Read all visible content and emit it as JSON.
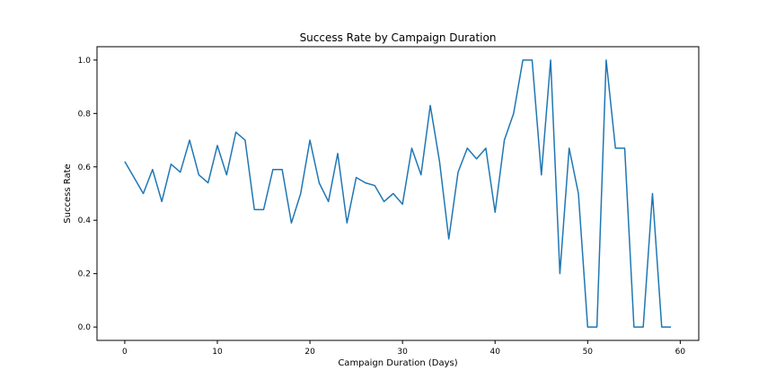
{
  "chart_data": {
    "type": "line",
    "title": "Success Rate by Campaign Duration",
    "xlabel": "Campaign Duration (Days)",
    "ylabel": "Success Rate",
    "xlim": [
      -3,
      62
    ],
    "ylim": [
      -0.05,
      1.05
    ],
    "xticks": [
      0,
      10,
      20,
      30,
      40,
      50,
      60
    ],
    "yticks": [
      0.0,
      0.2,
      0.4,
      0.6,
      0.8,
      1.0
    ],
    "xtick_labels": [
      "0",
      "10",
      "20",
      "30",
      "40",
      "50",
      "60"
    ],
    "ytick_labels": [
      "0.0",
      "0.2",
      "0.4",
      "0.6",
      "0.8",
      "1.0"
    ],
    "grid": false,
    "line_color": "#1f77b4",
    "x": [
      0,
      1,
      2,
      3,
      4,
      5,
      6,
      7,
      8,
      9,
      10,
      11,
      12,
      13,
      14,
      15,
      16,
      17,
      18,
      19,
      20,
      21,
      22,
      23,
      24,
      25,
      26,
      27,
      28,
      29,
      30,
      31,
      32,
      33,
      34,
      35,
      36,
      37,
      38,
      39,
      40,
      41,
      42,
      43,
      44,
      45,
      46,
      47,
      48,
      49,
      50,
      51,
      52,
      53,
      54,
      55,
      56,
      57,
      58,
      59
    ],
    "y": [
      0.62,
      0.56,
      0.5,
      0.59,
      0.47,
      0.61,
      0.58,
      0.7,
      0.57,
      0.54,
      0.68,
      0.57,
      0.73,
      0.7,
      0.44,
      0.44,
      0.59,
      0.59,
      0.39,
      0.5,
      0.7,
      0.54,
      0.47,
      0.65,
      0.39,
      0.56,
      0.54,
      0.53,
      0.47,
      0.5,
      0.46,
      0.67,
      0.57,
      0.83,
      0.62,
      0.33,
      0.58,
      0.67,
      0.63,
      0.67,
      0.43,
      0.7,
      0.8,
      1.0,
      1.0,
      0.57,
      1.0,
      0.2,
      0.67,
      0.5,
      0.0,
      0.0,
      1.0,
      0.67,
      0.67,
      0.0,
      0.0,
      0.5,
      0.0,
      0.0
    ]
  }
}
